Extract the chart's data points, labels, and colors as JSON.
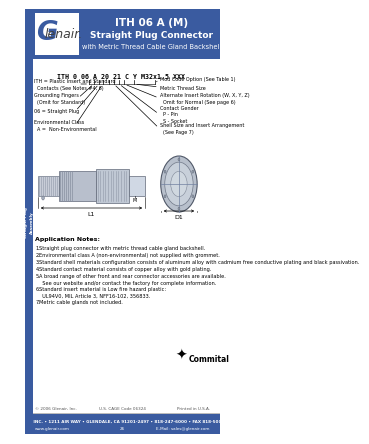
{
  "title_line1": "ITH 06 A (M)",
  "title_line2": "Straight Plug Connector",
  "title_line3": "with Metric Thread Cable Gland Backshell",
  "header_bg": "#3a5ba0",
  "header_text_color": "#ffffff",
  "part_number": "ITH 0 06 A 20 21 C Y M32x1.5 XXX",
  "labels_left": [
    "ITH = Plastic Insert and Standard\n  Contacts (See Notes #4, 6)",
    "Grounding Fingers\n  (Omit for Standard)",
    "06 = Straight Plug",
    "Environmental Class\n  A =  Non-Environmental"
  ],
  "labels_right": [
    "Mod Code Option (See Table 1)",
    "Metric Thread Size",
    "Alternate Insert Rotation (W, X, Y, Z)\n  Omit for Normal (See page 6)",
    "Contact Gender\n  P - Pin\n  S - Socket",
    "Shell Size and Insert Arrangement\n  (See Page 7)"
  ],
  "app_notes_title": "Application Notes:",
  "app_notes": [
    "Straight plug connector with metric thread cable gland backshell.",
    "Environmental class A (non-environmental) not supplied with grommet.",
    "Standard shell materials configuration consists of aluminum alloy with cadmium free conductive plating and black passivation.",
    "Standard contact material consists of copper alloy with gold plating.",
    "A broad range of other front and rear connector accessories are available.\n  See our website and/or contact the factory for complete information.",
    "Standard insert material is Low fire hazard plastic:\n  UL94V0, MIL Article 3, NFF16-102, 356833.",
    "Metric cable glands not included."
  ],
  "footer_copy": "© 2006 Glenair, Inc.",
  "footer_cage": "U.S. CAGE Code 06324",
  "footer_print": "Printed in U.S.A.",
  "footer_addr": "GLENAIR, INC. • 1211 AIR WAY • GLENDALE, CA 91201-2497 • 818-247-6000 • FAX 818-500-9912",
  "footer_web": "www.glenair.com",
  "footer_page": "26",
  "footer_email": "E-Mail: sales@glenair.com",
  "dim_l1": "L1",
  "dim_d1": "D1",
  "bg_color": "#ffffff",
  "sidebar_bg": "#3a5ba0",
  "footer_bar_color": "#3a5ba0",
  "sidebar_text1": "Straight Plug",
  "sidebar_text2": "Assembly"
}
